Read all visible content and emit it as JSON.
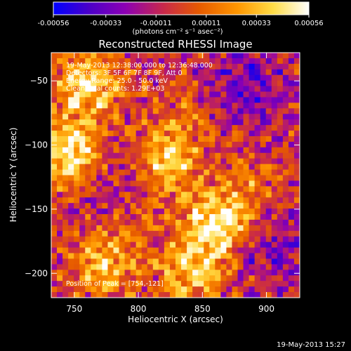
{
  "colorbar": {
    "tick_labels": [
      "-0.00056",
      "-0.00033",
      "-0.00011",
      "0.00011",
      "0.00033",
      "0.00056"
    ],
    "tick_values": [
      -0.00056,
      -0.00033,
      -0.00011,
      0.00011,
      0.00033,
      0.00056
    ],
    "range": [
      -0.00056,
      0.00056
    ],
    "units_label": "(photons cm⁻² s⁻¹ asec⁻²)",
    "colors": [
      "#0000ff",
      "#4b00c8",
      "#8c00b4",
      "#c8284b",
      "#e65a00",
      "#ff9600",
      "#ffdc46",
      "#ffffff"
    ]
  },
  "chart_data": {
    "type": "heatmap",
    "title": "Reconstructed RHESSI Image",
    "xlabel": "Heliocentric X (arcsec)",
    "ylabel": "Heliocentric Y (arcsec)",
    "xlim": [
      732,
      926
    ],
    "ylim": [
      -219,
      -28
    ],
    "x_ticks": [
      750,
      800,
      850,
      900
    ],
    "x_tick_labels": [
      "750",
      "800",
      "850",
      "900"
    ],
    "y_ticks": [
      -200,
      -150,
      -100,
      -50
    ],
    "y_tick_labels": [
      "−200",
      "−150",
      "−100",
      "−50"
    ],
    "peak": [
      754,
      -121
    ],
    "annotations": {
      "time": "19-May-2013 12:38:00.000 to 12:36:48.000",
      "detectors": "Detectors: 3F 5F 6F 7F 8F 9F, Att 0",
      "energy": "Energy Range: 25.0 - 50.0 keV",
      "method": "Clean    Total counts: 1.29E+03",
      "peak_text": "Position of Peak = [754,-121]"
    },
    "bright_sources": [
      {
        "x": 760,
        "y": -55,
        "level": 0.9
      },
      {
        "x": 747,
        "y": -108,
        "level": 0.95
      },
      {
        "x": 822,
        "y": -110,
        "level": 0.85
      },
      {
        "x": 800,
        "y": -150,
        "level": 0.6
      },
      {
        "x": 862,
        "y": -160,
        "level": 0.95
      },
      {
        "x": 842,
        "y": -198,
        "level": 0.85
      },
      {
        "x": 773,
        "y": -193,
        "level": 0.8
      },
      {
        "x": 890,
        "y": -130,
        "level": 0.6
      },
      {
        "x": 838,
        "y": -72,
        "level": 0.55
      }
    ],
    "dark_regions": [
      {
        "x": 885,
        "y": -55,
        "level": 0.25
      },
      {
        "x": 790,
        "y": -130,
        "level": 0.3
      },
      {
        "x": 905,
        "y": -180,
        "level": 0.3
      }
    ],
    "background_level": 0.45
  },
  "footer": {
    "timestamp": "19-May-2013 15:27"
  }
}
